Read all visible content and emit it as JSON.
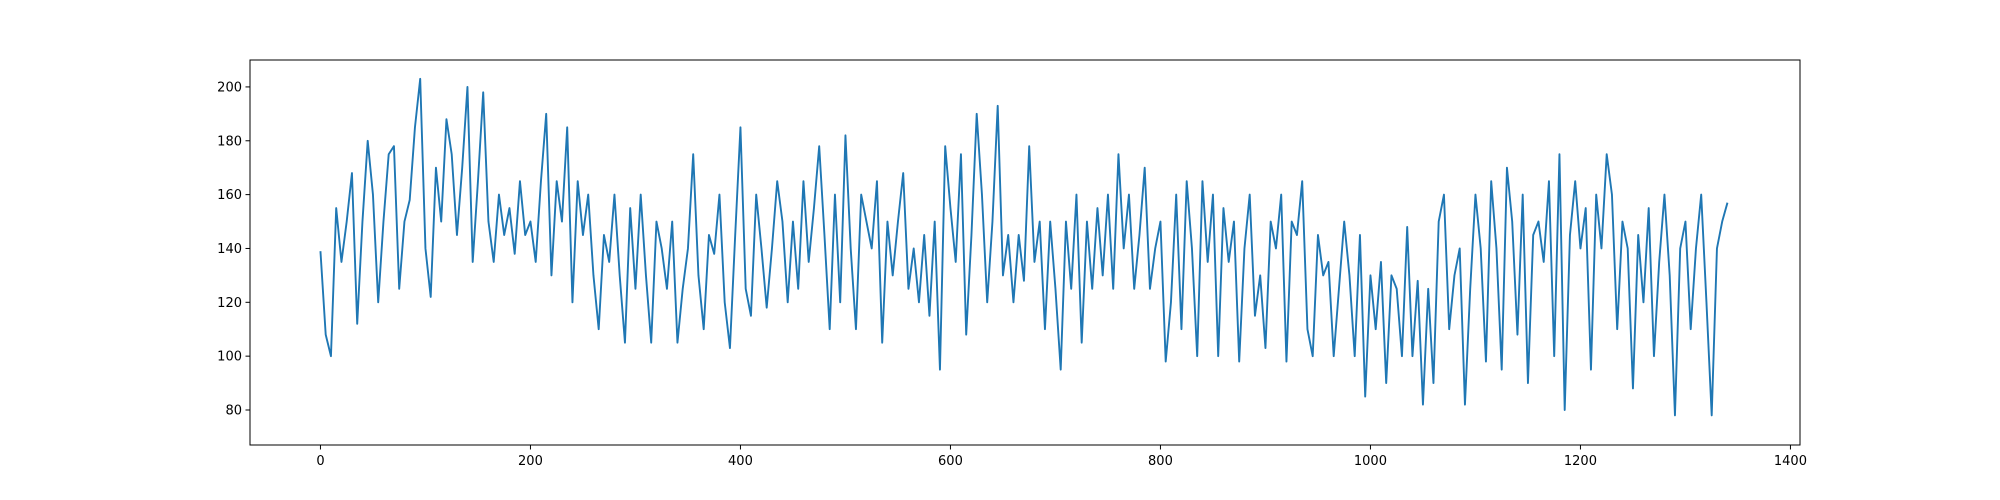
{
  "chart_data": {
    "type": "line",
    "color": "#1f77b4",
    "grid": false,
    "xlim": [
      -67.1,
      1409.1
    ],
    "xticks": [
      0,
      200,
      400,
      600,
      800,
      1000,
      1200,
      1400
    ],
    "ylim": [
      67,
      210
    ],
    "yticks": [
      80,
      100,
      120,
      140,
      160,
      180,
      200
    ],
    "x": [
      0,
      5,
      10,
      15,
      20,
      25,
      30,
      35,
      40,
      45,
      50,
      55,
      60,
      65,
      70,
      75,
      80,
      85,
      90,
      95,
      100,
      105,
      110,
      115,
      120,
      125,
      130,
      135,
      140,
      145,
      150,
      155,
      160,
      165,
      170,
      175,
      180,
      185,
      190,
      195,
      200,
      205,
      210,
      215,
      220,
      225,
      230,
      235,
      240,
      245,
      250,
      255,
      260,
      265,
      270,
      275,
      280,
      285,
      290,
      295,
      300,
      305,
      310,
      315,
      320,
      325,
      330,
      335,
      340,
      345,
      350,
      355,
      360,
      365,
      370,
      375,
      380,
      385,
      390,
      395,
      400,
      405,
      410,
      415,
      420,
      425,
      430,
      435,
      440,
      445,
      450,
      455,
      460,
      465,
      470,
      475,
      480,
      485,
      490,
      495,
      500,
      505,
      510,
      515,
      520,
      525,
      530,
      535,
      540,
      545,
      550,
      555,
      560,
      565,
      570,
      575,
      580,
      585,
      590,
      595,
      600,
      605,
      610,
      615,
      620,
      625,
      630,
      635,
      640,
      645,
      650,
      655,
      660,
      665,
      670,
      675,
      680,
      685,
      690,
      695,
      700,
      705,
      710,
      715,
      720,
      725,
      730,
      735,
      740,
      745,
      750,
      755,
      760,
      765,
      770,
      775,
      780,
      785,
      790,
      795,
      800,
      805,
      810,
      815,
      820,
      825,
      830,
      835,
      840,
      845,
      850,
      855,
      860,
      865,
      870,
      875,
      880,
      885,
      890,
      895,
      900,
      905,
      910,
      915,
      920,
      925,
      930,
      935,
      940,
      945,
      950,
      955,
      960,
      965,
      970,
      975,
      980,
      985,
      990,
      995,
      1000,
      1005,
      1010,
      1015,
      1020,
      1025,
      1030,
      1035,
      1040,
      1045,
      1050,
      1055,
      1060,
      1065,
      1070,
      1075,
      1080,
      1085,
      1090,
      1095,
      1100,
      1105,
      1110,
      1115,
      1120,
      1125,
      1130,
      1135,
      1140,
      1145,
      1150,
      1155,
      1160,
      1165,
      1170,
      1175,
      1180,
      1185,
      1190,
      1195,
      1200,
      1205,
      1210,
      1215,
      1220,
      1225,
      1230,
      1235,
      1240,
      1245,
      1250,
      1255,
      1260,
      1265,
      1270,
      1275,
      1280,
      1285,
      1290,
      1295,
      1300,
      1305,
      1310,
      1315,
      1320,
      1325,
      1330,
      1335,
      1340
    ],
    "values": [
      139,
      108,
      100,
      155,
      135,
      150,
      168,
      112,
      150,
      180,
      160,
      120,
      150,
      175,
      178,
      125,
      150,
      158,
      185,
      203,
      140,
      122,
      170,
      150,
      188,
      175,
      145,
      170,
      200,
      135,
      165,
      198,
      150,
      135,
      160,
      145,
      155,
      138,
      165,
      145,
      150,
      135,
      165,
      190,
      130,
      165,
      150,
      185,
      120,
      165,
      145,
      160,
      130,
      110,
      145,
      135,
      160,
      130,
      105,
      155,
      125,
      160,
      130,
      105,
      150,
      140,
      125,
      150,
      105,
      125,
      140,
      175,
      130,
      110,
      145,
      138,
      160,
      120,
      103,
      145,
      185,
      125,
      115,
      160,
      140,
      118,
      140,
      165,
      150,
      120,
      150,
      125,
      165,
      135,
      155,
      178,
      145,
      110,
      160,
      120,
      182,
      140,
      110,
      160,
      150,
      140,
      165,
      105,
      150,
      130,
      150,
      168,
      125,
      140,
      120,
      145,
      115,
      150,
      95,
      178,
      155,
      135,
      175,
      108,
      145,
      190,
      160,
      120,
      150,
      193,
      130,
      145,
      120,
      145,
      128,
      178,
      135,
      150,
      110,
      150,
      125,
      95,
      150,
      125,
      160,
      105,
      150,
      125,
      155,
      130,
      160,
      125,
      175,
      140,
      160,
      125,
      145,
      170,
      125,
      140,
      150,
      98,
      120,
      160,
      110,
      165,
      140,
      100,
      165,
      135,
      160,
      100,
      155,
      135,
      150,
      98,
      140,
      160,
      115,
      130,
      103,
      150,
      140,
      160,
      98,
      150,
      145,
      165,
      110,
      100,
      145,
      130,
      135,
      100,
      125,
      150,
      130,
      100,
      145,
      85,
      130,
      110,
      135,
      90,
      130,
      125,
      100,
      148,
      100,
      128,
      82,
      125,
      90,
      150,
      160,
      110,
      130,
      140,
      82,
      125,
      160,
      140,
      98,
      165,
      140,
      95,
      170,
      150,
      108,
      160,
      90,
      145,
      150,
      135,
      165,
      100,
      175,
      80,
      145,
      165,
      140,
      155,
      95,
      160,
      140,
      175,
      160,
      110,
      150,
      140,
      88,
      145,
      120,
      155,
      100,
      135,
      160,
      130,
      78,
      140,
      150,
      110,
      140,
      160,
      120,
      78,
      140,
      150,
      157
    ]
  }
}
